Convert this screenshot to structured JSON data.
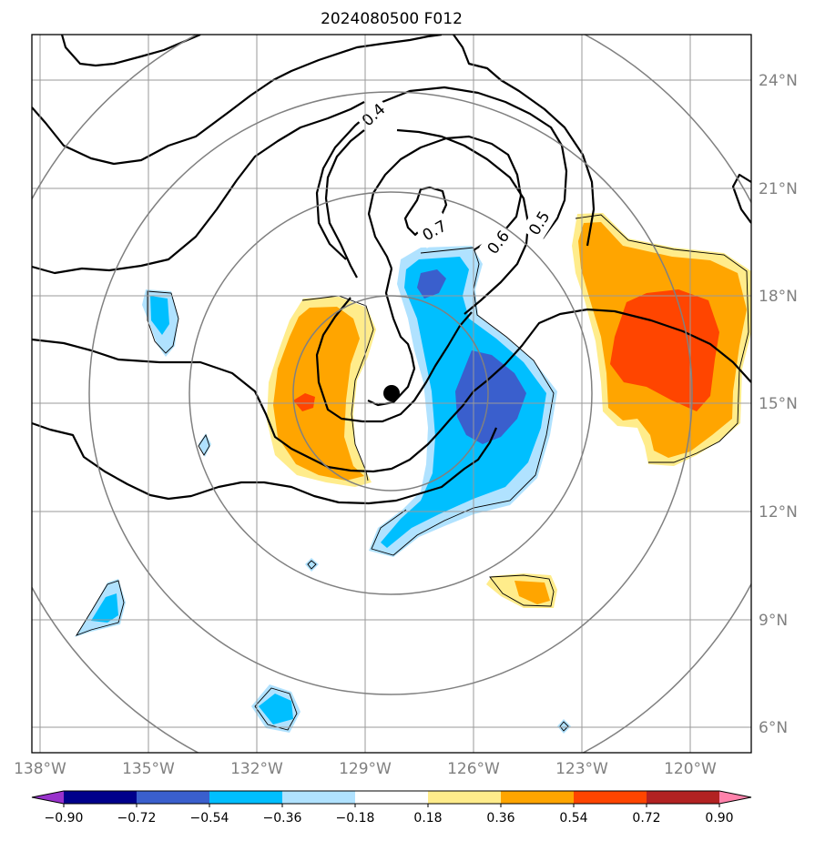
{
  "map": {
    "title": "2024080500 F012",
    "lon_labels": [
      "138°W",
      "135°W",
      "132°W",
      "129°W",
      "126°W",
      "123°W",
      "120°W"
    ],
    "lat_labels": [
      "24°N",
      "21°N",
      "18°N",
      "15°N",
      "12°N",
      "9°N",
      "6°N"
    ],
    "storm_center": {
      "lon": -128.3,
      "lat": 15.3
    },
    "contour_labels": [
      "0.4",
      "0.7",
      "0.6",
      "0.5"
    ],
    "range_rings_deg": [
      3,
      6,
      9,
      12
    ],
    "colorbar": {
      "ticks": [
        "−0.90",
        "−0.72",
        "−0.54",
        "−0.36",
        "−0.18",
        "0.18",
        "0.36",
        "0.54",
        "0.72",
        "0.90"
      ],
      "colors": [
        "#9932CC",
        "#00008B",
        "#3A5FCD",
        "#00BFFF",
        "#B0E2FF",
        "#FFFFFF",
        "#FFEC8B",
        "#FFA500",
        "#FF4500",
        "#B22222",
        "#FF82AB"
      ]
    }
  }
}
